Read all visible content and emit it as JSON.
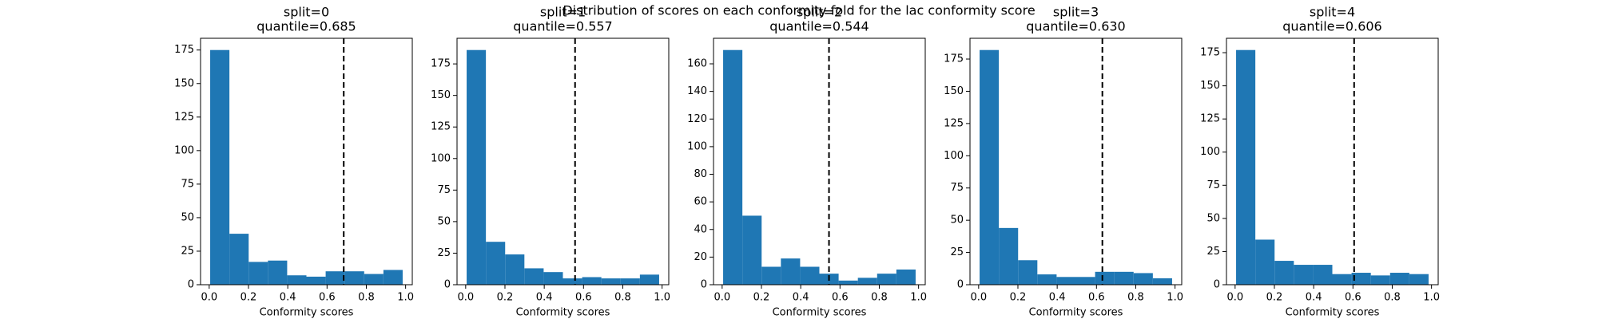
{
  "title": "Distribution of scores on each conformity fold for the lac conformity score",
  "chart_data": [
    {
      "type": "histogram",
      "title": "split=0",
      "subtitle": "quantile=0.685",
      "quantile": 0.685,
      "xlabel": "Conformity scores",
      "color": "#1f77b4",
      "bins": [
        0.005,
        0.103,
        0.201,
        0.299,
        0.397,
        0.495,
        0.593,
        0.691,
        0.789,
        0.887,
        0.985
      ],
      "values": [
        175,
        38,
        17,
        18,
        7,
        6,
        10,
        10,
        8,
        11
      ],
      "xlim": [
        -0.044,
        1.034
      ],
      "xticks": [
        {
          "value": 0,
          "label": "0.0"
        },
        {
          "value": 0.2,
          "label": "0.2"
        },
        {
          "value": 0.4,
          "label": "0.4"
        },
        {
          "value": 0.6,
          "label": "0.6"
        },
        {
          "value": 0.8,
          "label": "0.8"
        },
        {
          "value": 1,
          "label": "1.0"
        }
      ],
      "ylim": [
        0,
        183.75
      ],
      "yticks": [
        0,
        25,
        50,
        75,
        100,
        125,
        150,
        175
      ]
    },
    {
      "type": "histogram",
      "title": "split=1",
      "subtitle": "quantile=0.557",
      "quantile": 0.557,
      "xlabel": "Conformity scores",
      "color": "#1f77b4",
      "bins": [
        0.005,
        0.103,
        0.201,
        0.299,
        0.397,
        0.495,
        0.593,
        0.691,
        0.789,
        0.887,
        0.985
      ],
      "values": [
        186,
        34,
        24,
        13,
        10,
        5,
        6,
        5,
        5,
        8
      ],
      "xlim": [
        -0.044,
        1.034
      ],
      "xticks": [
        {
          "value": 0,
          "label": "0.0"
        },
        {
          "value": 0.2,
          "label": "0.2"
        },
        {
          "value": 0.4,
          "label": "0.4"
        },
        {
          "value": 0.6,
          "label": "0.6"
        },
        {
          "value": 0.8,
          "label": "0.8"
        },
        {
          "value": 1,
          "label": "1.0"
        }
      ],
      "ylim": [
        0,
        195.3
      ],
      "yticks": [
        0,
        25,
        50,
        75,
        100,
        125,
        150,
        175
      ]
    },
    {
      "type": "histogram",
      "title": "split=2",
      "subtitle": "quantile=0.544",
      "quantile": 0.544,
      "xlabel": "Conformity scores",
      "color": "#1f77b4",
      "bins": [
        0.005,
        0.103,
        0.201,
        0.299,
        0.397,
        0.495,
        0.593,
        0.691,
        0.789,
        0.887,
        0.985
      ],
      "values": [
        170,
        50,
        13,
        19,
        13,
        8,
        3,
        5,
        8,
        11
      ],
      "xlim": [
        -0.044,
        1.034
      ],
      "xticks": [
        {
          "value": 0,
          "label": "0.0"
        },
        {
          "value": 0.2,
          "label": "0.2"
        },
        {
          "value": 0.4,
          "label": "0.4"
        },
        {
          "value": 0.6,
          "label": "0.6"
        },
        {
          "value": 0.8,
          "label": "0.8"
        },
        {
          "value": 1,
          "label": "1.0"
        }
      ],
      "ylim": [
        0,
        178.5
      ],
      "yticks": [
        0,
        20,
        40,
        60,
        80,
        100,
        120,
        140,
        160
      ]
    },
    {
      "type": "histogram",
      "title": "split=3",
      "subtitle": "quantile=0.630",
      "quantile": 0.63,
      "xlabel": "Conformity scores",
      "color": "#1f77b4",
      "bins": [
        0.005,
        0.103,
        0.201,
        0.299,
        0.397,
        0.495,
        0.593,
        0.691,
        0.789,
        0.887,
        0.985
      ],
      "values": [
        182,
        44,
        19,
        8,
        6,
        6,
        10,
        10,
        9,
        5
      ],
      "xlim": [
        -0.044,
        1.034
      ],
      "xticks": [
        {
          "value": 0,
          "label": "0.0"
        },
        {
          "value": 0.2,
          "label": "0.2"
        },
        {
          "value": 0.4,
          "label": "0.4"
        },
        {
          "value": 0.6,
          "label": "0.6"
        },
        {
          "value": 0.8,
          "label": "0.8"
        },
        {
          "value": 1,
          "label": "1.0"
        }
      ],
      "ylim": [
        0,
        191.1
      ],
      "yticks": [
        0,
        25,
        50,
        75,
        100,
        125,
        150,
        175
      ]
    },
    {
      "type": "histogram",
      "title": "split=4",
      "subtitle": "quantile=0.606",
      "quantile": 0.606,
      "xlabel": "Conformity scores",
      "color": "#1f77b4",
      "bins": [
        0.005,
        0.103,
        0.201,
        0.299,
        0.397,
        0.495,
        0.593,
        0.691,
        0.789,
        0.887,
        0.985
      ],
      "values": [
        177,
        34,
        18,
        15,
        15,
        8,
        9,
        7,
        9,
        8
      ],
      "xlim": [
        -0.044,
        1.034
      ],
      "xticks": [
        {
          "value": 0,
          "label": "0.0"
        },
        {
          "value": 0.2,
          "label": "0.2"
        },
        {
          "value": 0.4,
          "label": "0.4"
        },
        {
          "value": 0.6,
          "label": "0.6"
        },
        {
          "value": 0.8,
          "label": "0.8"
        },
        {
          "value": 1,
          "label": "1.0"
        }
      ],
      "ylim": [
        0,
        185.85
      ],
      "yticks": [
        0,
        25,
        50,
        75,
        100,
        125,
        150,
        175
      ]
    }
  ]
}
